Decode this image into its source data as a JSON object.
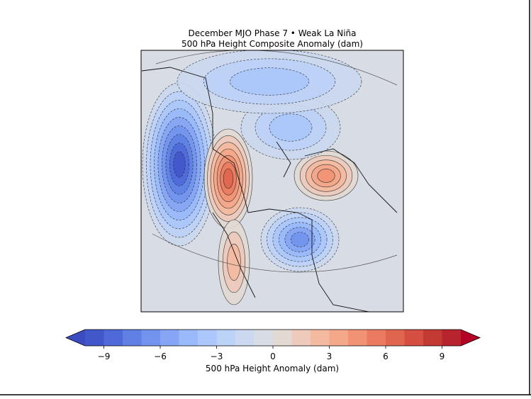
{
  "title": "December MJO Phase 7 • Weak La Niña",
  "subtitle": "500 hPa Height Composite Anomaly (dam)",
  "colorbar": {
    "label": "500 hPa Height Anomaly (dam)",
    "lim": [
      -10,
      10
    ],
    "ticks": [
      {
        "value": -9,
        "label": "−9"
      },
      {
        "value": -6,
        "label": "−6"
      },
      {
        "value": -3,
        "label": "−3"
      },
      0,
      3,
      6,
      9
    ],
    "colors": [
      "#4257c9",
      "#4f69d9",
      "#6080e5",
      "#7394ee",
      "#86a6f5",
      "#99b9fa",
      "#abc7fb",
      "#bcd2f7",
      "#cbd8ef",
      "#d8dce5",
      "#e3d9d3",
      "#eecabc",
      "#f4baa0",
      "#f5a789",
      "#f29274",
      "#ea7b60",
      "#e0654f",
      "#d44e41",
      "#c33a35",
      "#b8242d"
    ],
    "extend_colors": [
      "#3b4cc0",
      "#b40426"
    ]
  }
}
